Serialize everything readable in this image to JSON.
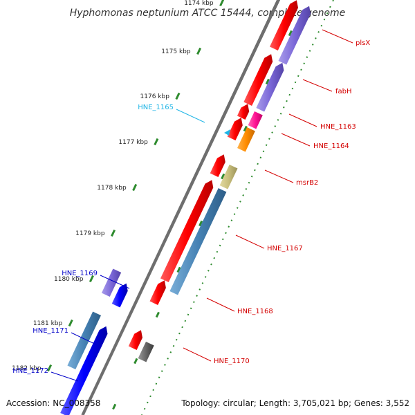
{
  "title": "Hyphomonas neptunium ATCC 15444, complete genome",
  "footer": {
    "accession": "Accession: NC_008358",
    "topology": "Topology: circular; Length: 3,705,021 bp; Genes: 3,552"
  },
  "ticks": [
    {
      "label": "1174 kbp"
    },
    {
      "label": "1175 kbp"
    },
    {
      "label": "1176 kbp"
    },
    {
      "label": "1177 kbp"
    },
    {
      "label": "1178 kbp"
    },
    {
      "label": "1179 kbp"
    },
    {
      "label": "1180 kbp"
    },
    {
      "label": "1181 kbp"
    },
    {
      "label": "1182 kbp"
    }
  ],
  "gene_labels": [
    {
      "id": "plsX",
      "text": "plsX",
      "color": "#d40000"
    },
    {
      "id": "fabH",
      "text": "fabH",
      "color": "#d40000"
    },
    {
      "id": "HNE_1163",
      "text": "HNE_1163",
      "color": "#d40000"
    },
    {
      "id": "HNE_1164",
      "text": "HNE_1164",
      "color": "#d40000"
    },
    {
      "id": "msrB2",
      "text": "msrB2",
      "color": "#d40000"
    },
    {
      "id": "HNE_1167",
      "text": "HNE_1167",
      "color": "#d40000"
    },
    {
      "id": "HNE_1168",
      "text": "HNE_1168",
      "color": "#d40000"
    },
    {
      "id": "HNE_1170",
      "text": "HNE_1170",
      "color": "#d40000"
    },
    {
      "id": "HNE_1165",
      "text": "HNE_1165",
      "color": "#1fb5e6"
    },
    {
      "id": "HNE_1169",
      "text": "HNE_1169",
      "color": "#0000c8"
    },
    {
      "id": "HNE_1171",
      "text": "HNE_1171",
      "color": "#0000c8"
    },
    {
      "id": "HNE_1172",
      "text": "HNE_1172",
      "color": "#0000c8"
    }
  ],
  "colors": {
    "cds_red": "#ff0000",
    "cds_blue": "#0000ff",
    "orf_purple": "#7b68d8",
    "orf_steelblue": "#4682b4",
    "orf_magenta": "#ff1493",
    "orf_orange": "#ff8c00",
    "orf_khaki": "#c9bf7c",
    "orf_gray": "#666666",
    "trna_cyan": "#1fb5e6",
    "backbone": "#808080",
    "ticks": "#2e8b2e"
  }
}
